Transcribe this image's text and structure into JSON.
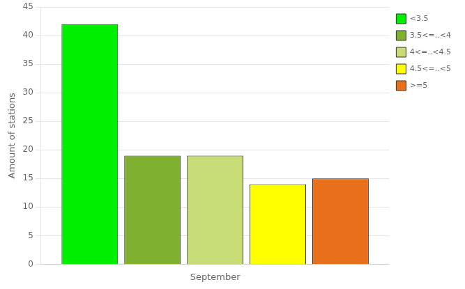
{
  "chart_data": {
    "type": "bar",
    "categories": [
      "September"
    ],
    "series": [
      {
        "name": "<3.5",
        "color": "#00ee00",
        "values": [
          42
        ]
      },
      {
        "name": "3.5<=..<4",
        "color": "#80b030",
        "values": [
          19
        ]
      },
      {
        "name": "4<=..<4.5",
        "color": "#c8dc78",
        "values": [
          19
        ]
      },
      {
        "name": "4.5<=..<5",
        "color": "#ffff00",
        "values": [
          14
        ]
      },
      {
        "name": ">=5",
        "color": "#e8701a",
        "values": [
          15
        ]
      }
    ],
    "ylabel": "Amount of stations",
    "ylim": [
      0,
      45
    ],
    "yticks": [
      0,
      5,
      10,
      15,
      20,
      25,
      30,
      35,
      40,
      45
    ],
    "grid": true,
    "legend": "upper right"
  }
}
